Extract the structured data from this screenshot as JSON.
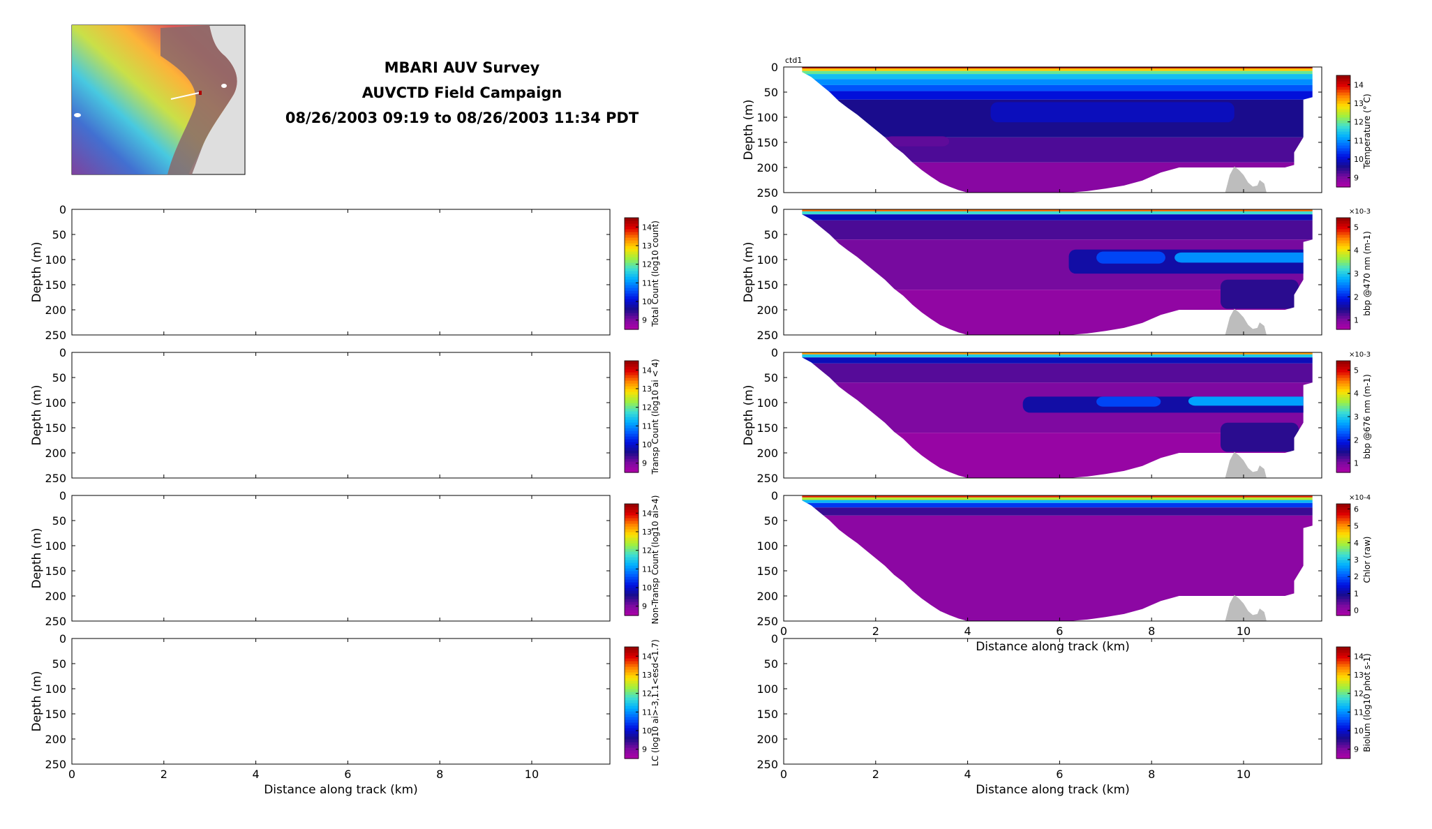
{
  "title_lines": [
    "MBARI AUV Survey",
    "AUVCTD Field Campaign",
    "08/26/2003 09:19 to 08/26/2003 11:34 PDT"
  ],
  "colors": {
    "jet_stops": [
      "#b000a8",
      "#7a0aa0",
      "#1a0c8c",
      "#0010e0",
      "#0060ff",
      "#00b0ff",
      "#40e0d0",
      "#a0f040",
      "#ffe000",
      "#ff8000",
      "#e00000",
      "#900000"
    ],
    "land_gray": "#bdbdbd",
    "map_water": "#dedede",
    "map_land_mask": "#8a6a6a"
  },
  "chart_data": [
    {
      "type": "heatmap",
      "panel": "total_count",
      "xlabel": "",
      "ylabel": "Depth (m)",
      "xlim": [
        0,
        11.7
      ],
      "ylim": [
        0,
        250
      ],
      "y_ticks": [
        0,
        50,
        100,
        150,
        200,
        250
      ],
      "colorbar_label": "Total Count (log10 count)",
      "colorbar_ticks": [
        9,
        10,
        11,
        12,
        13,
        14
      ],
      "colorbar_range": [
        8.5,
        14.5
      ],
      "data": []
    },
    {
      "type": "heatmap",
      "panel": "transp_count",
      "xlabel": "",
      "ylabel": "Depth (m)",
      "xlim": [
        0,
        11.7
      ],
      "ylim": [
        0,
        250
      ],
      "y_ticks": [
        0,
        50,
        100,
        150,
        200,
        250
      ],
      "colorbar_label": "Transp Count (log10 ai < 4)",
      "colorbar_ticks": [
        9,
        10,
        11,
        12,
        13,
        14
      ],
      "colorbar_range": [
        8.5,
        14.5
      ],
      "data": []
    },
    {
      "type": "heatmap",
      "panel": "non_transp_count",
      "xlabel": "",
      "ylabel": "Depth (m)",
      "xlim": [
        0,
        11.7
      ],
      "ylim": [
        0,
        250
      ],
      "y_ticks": [
        0,
        50,
        100,
        150,
        200,
        250
      ],
      "colorbar_label": "Non-Transp Count (log10 ai>4)",
      "colorbar_ticks": [
        9,
        10,
        11,
        12,
        13,
        14
      ],
      "colorbar_range": [
        8.5,
        14.5
      ],
      "data": []
    },
    {
      "type": "heatmap",
      "panel": "lc",
      "xlabel": "Distance along track (km)",
      "ylabel": "Depth (m)",
      "xlim": [
        0,
        11.7
      ],
      "ylim": [
        0,
        250
      ],
      "x_ticks": [
        0,
        2,
        4,
        6,
        8,
        10
      ],
      "y_ticks": [
        0,
        50,
        100,
        150,
        200,
        250
      ],
      "colorbar_label": "LC (log10 ai>-3,1.1<esd<1.7)",
      "colorbar_ticks": [
        9,
        10,
        11,
        12,
        13,
        14
      ],
      "colorbar_range": [
        8.5,
        14.5
      ],
      "data": []
    },
    {
      "type": "heatmap",
      "panel": "temperature",
      "corner_label": "ctd1",
      "xlabel": "",
      "ylabel": "Depth (m)",
      "xlim": [
        0,
        11.7
      ],
      "ylim": [
        0,
        250
      ],
      "y_ticks": [
        0,
        50,
        100,
        150,
        200,
        250
      ],
      "colorbar_label": "Temperature (° C)",
      "colorbar_ticks": [
        9,
        10,
        11,
        12,
        13,
        14
      ],
      "colorbar_range": [
        8.5,
        14.5
      ],
      "layers": [
        {
          "top": 0,
          "bottom": 3,
          "value": 14.3
        },
        {
          "top": 3,
          "bottom": 8,
          "value": 13.0
        },
        {
          "top": 8,
          "bottom": 14,
          "value": 12.0
        },
        {
          "top": 14,
          "bottom": 24,
          "value": 11.4
        },
        {
          "top": 24,
          "bottom": 36,
          "value": 11.0
        },
        {
          "top": 36,
          "bottom": 48,
          "value": 10.6
        },
        {
          "top": 48,
          "bottom": 65,
          "value": 10.1
        },
        {
          "top": 65,
          "bottom": 140,
          "value": 9.6
        },
        {
          "top": 140,
          "bottom": 190,
          "value": 9.3
        },
        {
          "top": 190,
          "bottom": 250,
          "value": 8.9
        }
      ],
      "features": [
        {
          "x0": 2.2,
          "x1": 3.6,
          "top": 138,
          "bottom": 158,
          "value": 9.2
        },
        {
          "x0": 4.5,
          "x1": 9.8,
          "top": 70,
          "bottom": 110,
          "value": 9.9
        }
      ],
      "data": []
    },
    {
      "type": "heatmap",
      "panel": "bbp470",
      "xlabel": "",
      "ylabel": "Depth (m)",
      "xlim": [
        0,
        11.7
      ],
      "ylim": [
        0,
        250
      ],
      "y_ticks": [
        0,
        50,
        100,
        150,
        200,
        250
      ],
      "colorbar_label": "bbp @470 nm (m-1)",
      "colorbar_exponent": "×10-3",
      "colorbar_ticks": [
        1,
        2,
        3,
        4,
        5
      ],
      "colorbar_range": [
        0.6,
        5.4
      ],
      "layers": [
        {
          "top": 0,
          "bottom": 4,
          "value": 4.6
        },
        {
          "top": 4,
          "bottom": 10,
          "value": 3.2
        },
        {
          "top": 10,
          "bottom": 22,
          "value": 1.7
        },
        {
          "top": 22,
          "bottom": 60,
          "value": 1.25
        },
        {
          "top": 60,
          "bottom": 160,
          "value": 1.05
        },
        {
          "top": 160,
          "bottom": 250,
          "value": 0.85
        }
      ],
      "features": [
        {
          "x0": 6.2,
          "x1": 11.5,
          "top": 80,
          "bottom": 128,
          "value": 1.6
        },
        {
          "x0": 6.8,
          "x1": 8.3,
          "top": 84,
          "bottom": 108,
          "value": 2.2
        },
        {
          "x0": 8.5,
          "x1": 11.5,
          "top": 86,
          "bottom": 106,
          "value": 2.6
        },
        {
          "x0": 9.5,
          "x1": 11.2,
          "top": 140,
          "bottom": 198,
          "value": 1.4
        }
      ],
      "data": []
    },
    {
      "type": "heatmap",
      "panel": "bbp676",
      "xlabel": "",
      "ylabel": "Depth (m)",
      "xlim": [
        0,
        11.7
      ],
      "ylim": [
        0,
        250
      ],
      "y_ticks": [
        0,
        50,
        100,
        150,
        200,
        250
      ],
      "colorbar_label": "bbp @676 nm (m-1)",
      "colorbar_exponent": "×10-3",
      "colorbar_ticks": [
        1,
        2,
        3,
        4,
        5
      ],
      "colorbar_range": [
        0.6,
        5.4
      ],
      "layers": [
        {
          "top": 0,
          "bottom": 4,
          "value": 4.4
        },
        {
          "top": 4,
          "bottom": 10,
          "value": 3.0
        },
        {
          "top": 10,
          "bottom": 22,
          "value": 1.7
        },
        {
          "top": 22,
          "bottom": 60,
          "value": 1.2
        },
        {
          "top": 60,
          "bottom": 160,
          "value": 1.0
        },
        {
          "top": 160,
          "bottom": 250,
          "value": 0.8
        }
      ],
      "features": [
        {
          "x0": 5.2,
          "x1": 11.5,
          "top": 88,
          "bottom": 120,
          "value": 1.6
        },
        {
          "x0": 6.8,
          "x1": 8.2,
          "top": 88,
          "bottom": 108,
          "value": 2.2
        },
        {
          "x0": 8.8,
          "x1": 11.5,
          "top": 88,
          "bottom": 106,
          "value": 2.7
        },
        {
          "x0": 9.5,
          "x1": 11.2,
          "top": 140,
          "bottom": 198,
          "value": 1.4
        }
      ],
      "data": []
    },
    {
      "type": "heatmap",
      "panel": "chlor",
      "xlabel": "Distance along track (km)",
      "ylabel": "",
      "xlim": [
        0,
        11.7
      ],
      "ylim": [
        0,
        250
      ],
      "y_ticks": [
        0,
        50,
        100,
        150,
        200,
        250
      ],
      "colorbar_label": "Chlor (raw)",
      "colorbar_exponent": "×10-4",
      "colorbar_ticks": [
        0,
        1,
        2,
        3,
        4,
        5,
        6
      ],
      "colorbar_range": [
        -0.3,
        6.3
      ],
      "layers": [
        {
          "top": 0,
          "bottom": 4,
          "value": 5.5
        },
        {
          "top": 4,
          "bottom": 9,
          "value": 4.0
        },
        {
          "top": 9,
          "bottom": 15,
          "value": 2.8
        },
        {
          "top": 15,
          "bottom": 24,
          "value": 1.8
        },
        {
          "top": 24,
          "bottom": 40,
          "value": 0.7
        },
        {
          "top": 40,
          "bottom": 250,
          "value": 0.1
        }
      ],
      "features": [],
      "data": []
    },
    {
      "type": "heatmap",
      "panel": "biolum",
      "xlabel": "Distance along track (km)",
      "ylabel": "",
      "xlim": [
        0,
        11.7
      ],
      "ylim": [
        0,
        250
      ],
      "x_ticks": [
        0,
        2,
        4,
        6,
        8,
        10
      ],
      "y_ticks": [
        0,
        50,
        100,
        150,
        200,
        250
      ],
      "colorbar_label": "Biolum (log10 phot s-1)",
      "colorbar_ticks": [
        9,
        10,
        11,
        12,
        13,
        14
      ],
      "colorbar_range": [
        8.5,
        14.5
      ],
      "data": []
    }
  ],
  "track": {
    "x_start": 0.2,
    "x_end": 11.5,
    "lower_profile": [
      [
        0.4,
        10
      ],
      [
        0.6,
        20
      ],
      [
        0.8,
        35
      ],
      [
        1.0,
        50
      ],
      [
        1.2,
        68
      ],
      [
        1.4,
        82
      ],
      [
        1.6,
        95
      ],
      [
        1.8,
        110
      ],
      [
        2.0,
        125
      ],
      [
        2.2,
        140
      ],
      [
        2.4,
        158
      ],
      [
        2.6,
        172
      ],
      [
        2.8,
        190
      ],
      [
        3.0,
        205
      ],
      [
        3.2,
        218
      ],
      [
        3.4,
        230
      ],
      [
        3.6,
        238
      ],
      [
        3.8,
        245
      ],
      [
        4.0,
        250
      ],
      [
        6.2,
        250
      ],
      [
        6.6,
        247
      ],
      [
        7.0,
        242
      ],
      [
        7.4,
        236
      ],
      [
        7.8,
        226
      ],
      [
        8.2,
        210
      ],
      [
        8.6,
        200
      ],
      [
        10.2,
        200
      ],
      [
        10.9,
        200
      ],
      [
        11.1,
        195
      ],
      [
        11.1,
        170
      ],
      [
        11.3,
        140
      ],
      [
        11.3,
        65
      ],
      [
        11.5,
        60
      ],
      [
        11.5,
        0
      ]
    ],
    "seafloor": [
      [
        9.6,
        250
      ],
      [
        9.7,
        215
      ],
      [
        9.8,
        198
      ],
      [
        9.9,
        205
      ],
      [
        10.0,
        215
      ],
      [
        10.1,
        230
      ],
      [
        10.2,
        238
      ],
      [
        10.3,
        236
      ],
      [
        10.35,
        225
      ],
      [
        10.45,
        232
      ],
      [
        10.5,
        250
      ]
    ]
  }
}
